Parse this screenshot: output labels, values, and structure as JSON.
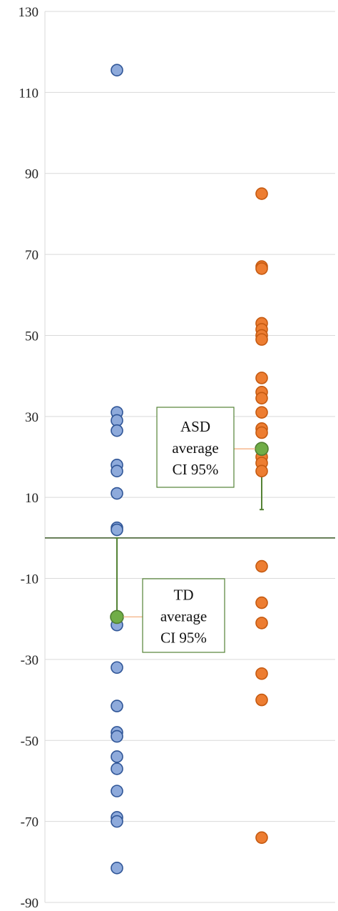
{
  "chart_data": {
    "type": "scatter",
    "title": "",
    "xlabel": "",
    "ylabel": "",
    "ylim": [
      -90,
      130
    ],
    "yticks": [
      130,
      110,
      90,
      70,
      50,
      30,
      10,
      -10,
      -30,
      -50,
      -70,
      -90
    ],
    "grid": true,
    "legend": "none",
    "zero_line": true,
    "series": [
      {
        "color": "#8EAADB",
        "edge": "#2F5597",
        "values": [
          115.5,
          31,
          29,
          26.5,
          18,
          16.5,
          11,
          2.5,
          2,
          -21.5,
          -32,
          -41.5,
          -48,
          -49,
          -54,
          -57,
          -62.5,
          -69,
          -70,
          -81.5
        ]
      },
      {
        "color": "#ED7D31",
        "edge": "#C55A11",
        "values": [
          85,
          67,
          66.5,
          53,
          51.5,
          50,
          49,
          39.5,
          36,
          34.5,
          31,
          27,
          26,
          22,
          20,
          18.5,
          16.5,
          -7,
          -16,
          -21,
          -33.5,
          -40,
          -74
        ]
      }
    ],
    "means": [
      {
        "value": -19.5,
        "ci_low": -19.5,
        "ci_high": 0,
        "color": "#70AD47"
      },
      {
        "value": 22,
        "ci_low": 7,
        "ci_high": 22,
        "color": "#70AD47"
      }
    ],
    "annotations": [
      {
        "lines": [
          "ASD",
          "average",
          "CI 95%"
        ]
      },
      {
        "lines": [
          "TD",
          "average",
          "CI 95%"
        ]
      }
    ]
  }
}
